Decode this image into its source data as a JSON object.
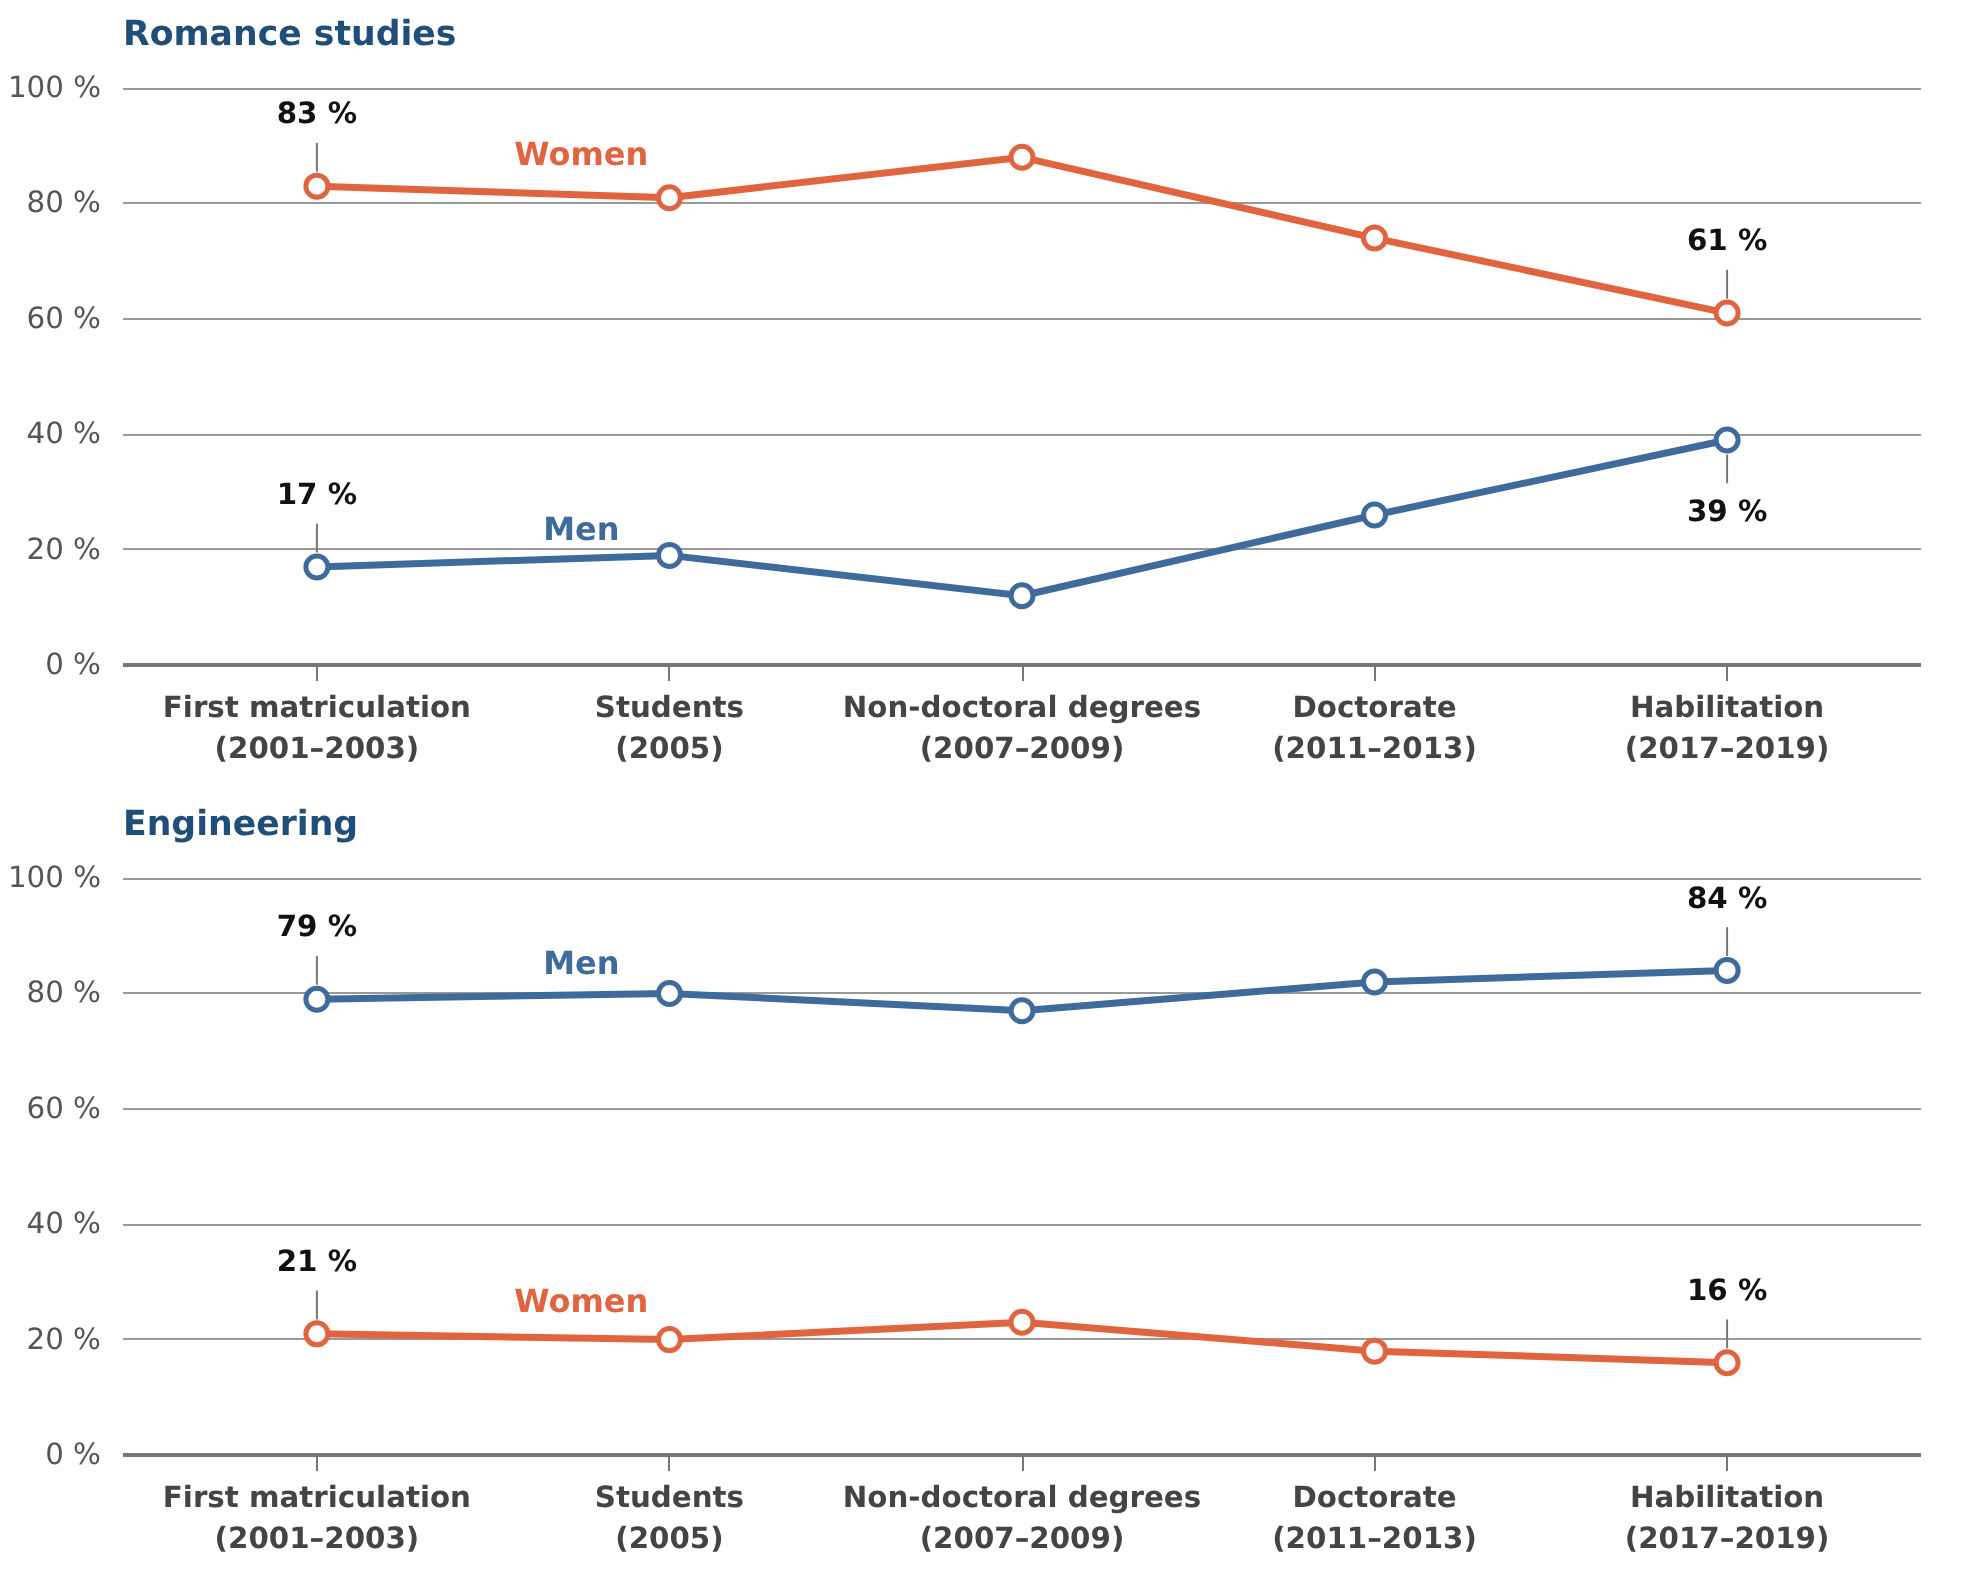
{
  "chart_data": [
    {
      "type": "line",
      "title": "Romance studies",
      "categories": [
        "First matriculation\n(2001–2003)",
        "Students\n(2005)",
        "Non-doctoral degrees\n(2007–2009)",
        "Doctorate\n(2011–2013)",
        "Habilitation\n(2017–2019)"
      ],
      "series": [
        {
          "name": "Women",
          "color": "#e0643f",
          "values": [
            83,
            81,
            88,
            74,
            61
          ],
          "value_labels": [
            "83 %",
            null,
            null,
            null,
            "61 %"
          ]
        },
        {
          "name": "Men",
          "color": "#3f6a9c",
          "values": [
            17,
            19,
            12,
            26,
            39
          ],
          "value_labels": [
            "17 %",
            null,
            null,
            null,
            "39 %"
          ]
        }
      ],
      "ylim": [
        0,
        100
      ],
      "yticks": [
        {
          "value": 0,
          "label": "0 %"
        },
        {
          "value": 20,
          "label": "20 %"
        },
        {
          "value": 40,
          "label": "40 %"
        },
        {
          "value": 60,
          "label": "60 %"
        },
        {
          "value": 80,
          "label": "80 %"
        },
        {
          "value": 100,
          "label": "100 %"
        }
      ],
      "grid": "y",
      "legend": false,
      "marker": "circle",
      "line_style": "solid"
    },
    {
      "type": "line",
      "title": "Engineering",
      "categories": [
        "First matriculation\n(2001–2003)",
        "Students\n(2005)",
        "Non-doctoral degrees\n(2007–2009)",
        "Doctorate\n(2011–2013)",
        "Habilitation\n(2017–2019)"
      ],
      "series": [
        {
          "name": "Men",
          "color": "#3f6a9c",
          "values": [
            79,
            80,
            77,
            82,
            84
          ],
          "value_labels": [
            "79 %",
            null,
            null,
            null,
            "84 %"
          ]
        },
        {
          "name": "Women",
          "color": "#e0643f",
          "values": [
            21,
            20,
            23,
            18,
            16
          ],
          "value_labels": [
            "21 %",
            null,
            null,
            null,
            "16 %"
          ]
        }
      ],
      "ylim": [
        0,
        100
      ],
      "yticks": [
        {
          "value": 0,
          "label": "0 %"
        },
        {
          "value": 20,
          "label": "20 %"
        },
        {
          "value": 40,
          "label": "40 %"
        },
        {
          "value": 60,
          "label": "60 %"
        },
        {
          "value": 80,
          "label": "80 %"
        },
        {
          "value": 100,
          "label": "100 %"
        }
      ],
      "grid": "y",
      "legend": false,
      "marker": "circle",
      "line_style": "solid"
    }
  ]
}
